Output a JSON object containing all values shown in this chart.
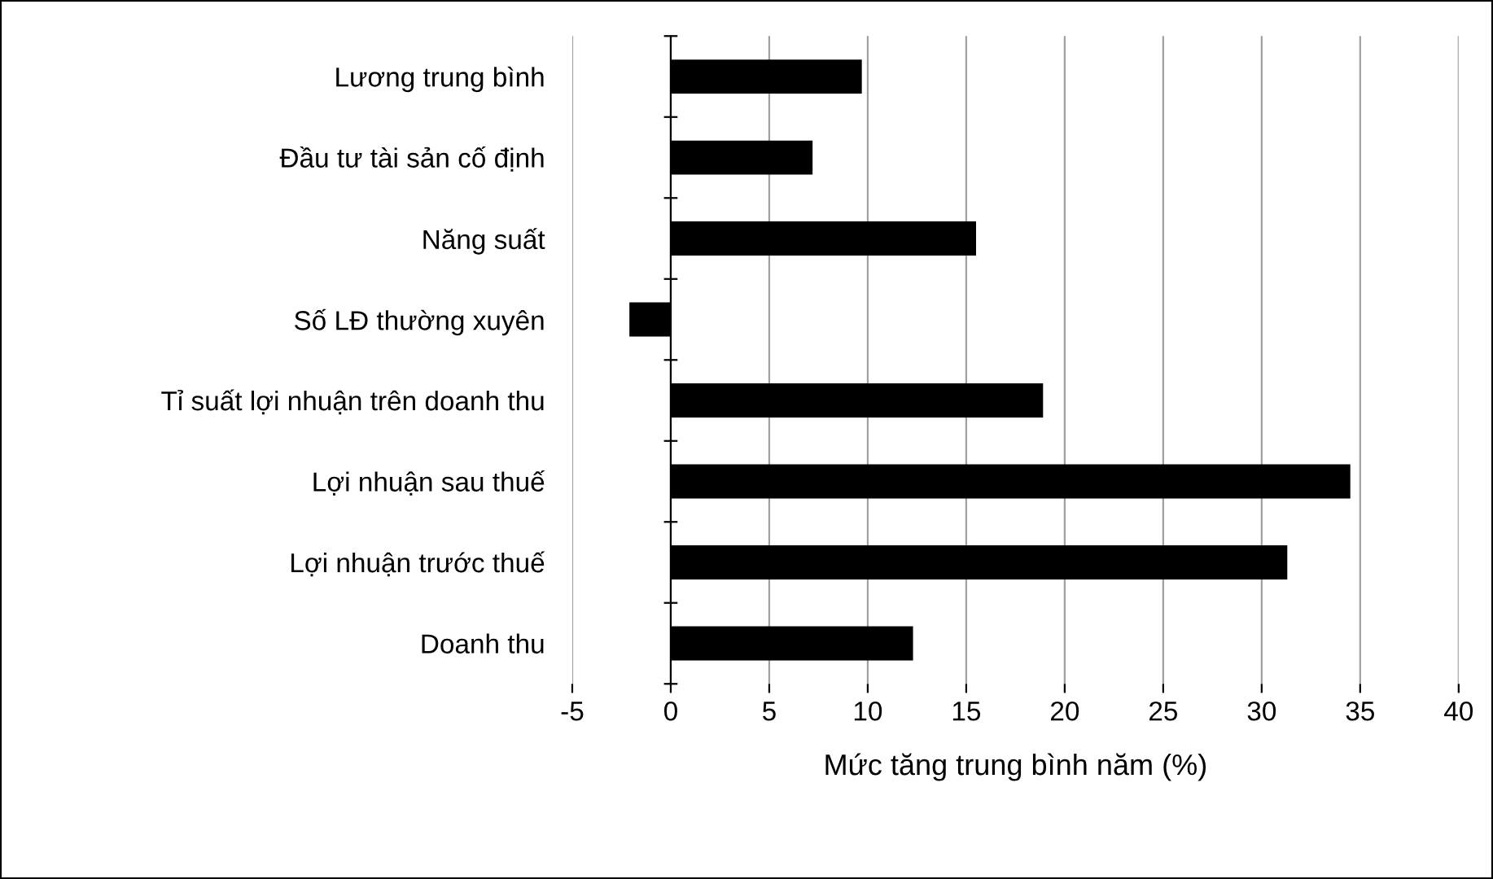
{
  "chart_data": {
    "type": "bar",
    "orientation": "horizontal",
    "xlabel": "Mức tăng trung bình năm (%)",
    "categories": [
      "Lương trung bình",
      "Đầu tư tài sản cố định",
      "Năng suất",
      "Số LĐ thường xuyên",
      "Tỉ suất lợi nhuận trên doanh thu",
      "Lợi nhuận sau thuế",
      "Lợi nhuận trước thuế",
      "Doanh thu"
    ],
    "values": [
      9.7,
      7.2,
      15.5,
      -2.1,
      18.9,
      34.5,
      31.3,
      12.3
    ],
    "color": "#000000",
    "xlim": [
      -5,
      40
    ],
    "xticks": [
      -5,
      0,
      5,
      10,
      15,
      20,
      25,
      30,
      35,
      40
    ],
    "grid": "x",
    "legend": false
  }
}
